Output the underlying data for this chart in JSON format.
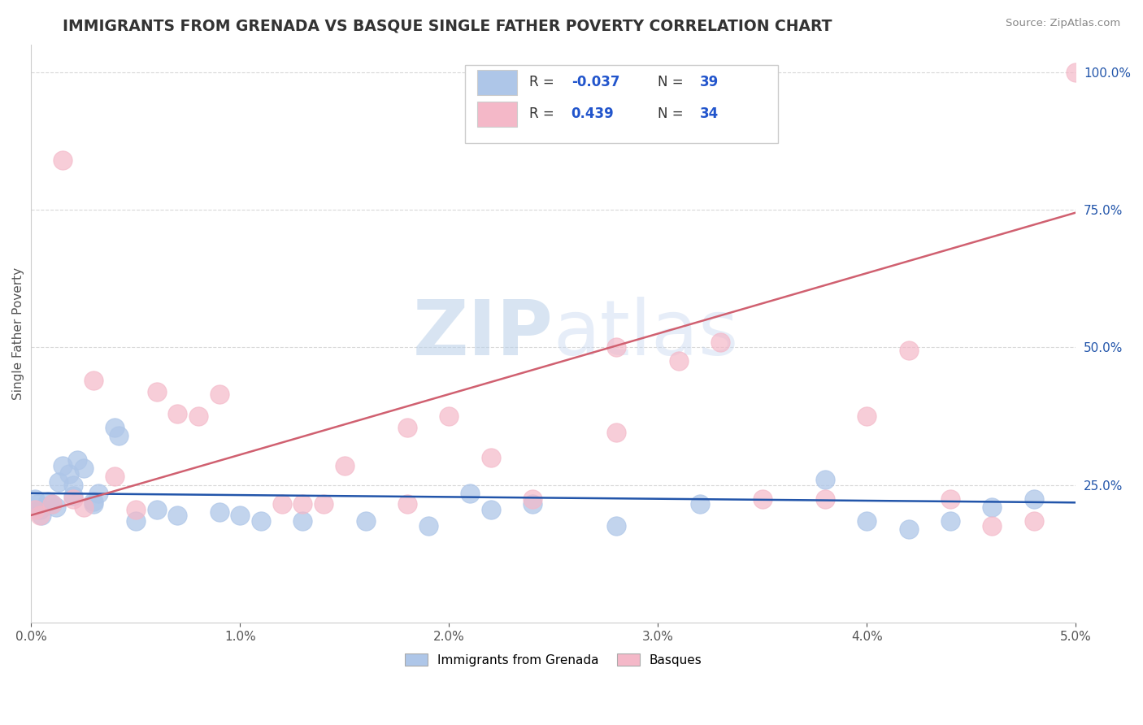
{
  "title": "IMMIGRANTS FROM GRENADA VS BASQUE SINGLE FATHER POVERTY CORRELATION CHART",
  "source": "Source: ZipAtlas.com",
  "ylabel": "Single Father Poverty",
  "y_tick_values": [
    0.25,
    0.5,
    0.75,
    1.0
  ],
  "x_tick_values": [
    0.0,
    0.01,
    0.02,
    0.03,
    0.04,
    0.05
  ],
  "legend_entries": [
    {
      "label": "Immigrants from Grenada",
      "R": "-0.037",
      "N": "39",
      "color": "#aec6e8"
    },
    {
      "label": "Basques",
      "R": "0.439",
      "N": "34",
      "color": "#f4b8c8"
    }
  ],
  "blue_scatter_x": [
    0.0002,
    0.0003,
    0.0004,
    0.0005,
    0.0008,
    0.001,
    0.0012,
    0.0013,
    0.0015,
    0.0018,
    0.002,
    0.002,
    0.0022,
    0.0025,
    0.003,
    0.003,
    0.0032,
    0.004,
    0.0042,
    0.005,
    0.006,
    0.007,
    0.009,
    0.01,
    0.011,
    0.013,
    0.016,
    0.019,
    0.021,
    0.022,
    0.024,
    0.028,
    0.032,
    0.038,
    0.04,
    0.042,
    0.044,
    0.046,
    0.048
  ],
  "blue_scatter_y": [
    0.225,
    0.215,
    0.205,
    0.195,
    0.22,
    0.215,
    0.21,
    0.255,
    0.285,
    0.27,
    0.25,
    0.23,
    0.295,
    0.28,
    0.22,
    0.215,
    0.235,
    0.355,
    0.34,
    0.185,
    0.205,
    0.195,
    0.2,
    0.195,
    0.185,
    0.185,
    0.185,
    0.175,
    0.235,
    0.205,
    0.215,
    0.175,
    0.215,
    0.26,
    0.185,
    0.17,
    0.185,
    0.21,
    0.225
  ],
  "pink_scatter_x": [
    0.0002,
    0.0004,
    0.001,
    0.0015,
    0.002,
    0.0025,
    0.003,
    0.004,
    0.005,
    0.006,
    0.007,
    0.008,
    0.009,
    0.012,
    0.013,
    0.015,
    0.018,
    0.02,
    0.022,
    0.024,
    0.028,
    0.031,
    0.033,
    0.035,
    0.038,
    0.04,
    0.042,
    0.044,
    0.046,
    0.048,
    0.014,
    0.018,
    0.028,
    0.05
  ],
  "pink_scatter_y": [
    0.205,
    0.195,
    0.215,
    0.84,
    0.225,
    0.21,
    0.44,
    0.265,
    0.205,
    0.42,
    0.38,
    0.375,
    0.415,
    0.215,
    0.215,
    0.285,
    0.355,
    0.375,
    0.3,
    0.225,
    0.345,
    0.475,
    0.51,
    0.225,
    0.225,
    0.375,
    0.495,
    0.225,
    0.175,
    0.185,
    0.215,
    0.215,
    0.5,
    1.0
  ],
  "blue_line_x": [
    0.0,
    0.05
  ],
  "blue_line_y": [
    0.235,
    0.218
  ],
  "pink_line_x": [
    0.0,
    0.05
  ],
  "pink_line_y": [
    0.195,
    0.745
  ],
  "watermark_zip": "ZIP",
  "watermark_atlas": "atlas",
  "bg_color": "#ffffff",
  "grid_color": "#d8d8d8",
  "blue_color": "#aec6e8",
  "pink_color": "#f4b8c8",
  "blue_line_color": "#2255aa",
  "pink_line_color": "#d06070",
  "title_color": "#333333",
  "r_n_color": "#2255cc",
  "xlim": [
    0.0,
    0.05
  ],
  "ylim": [
    0.0,
    1.05
  ]
}
